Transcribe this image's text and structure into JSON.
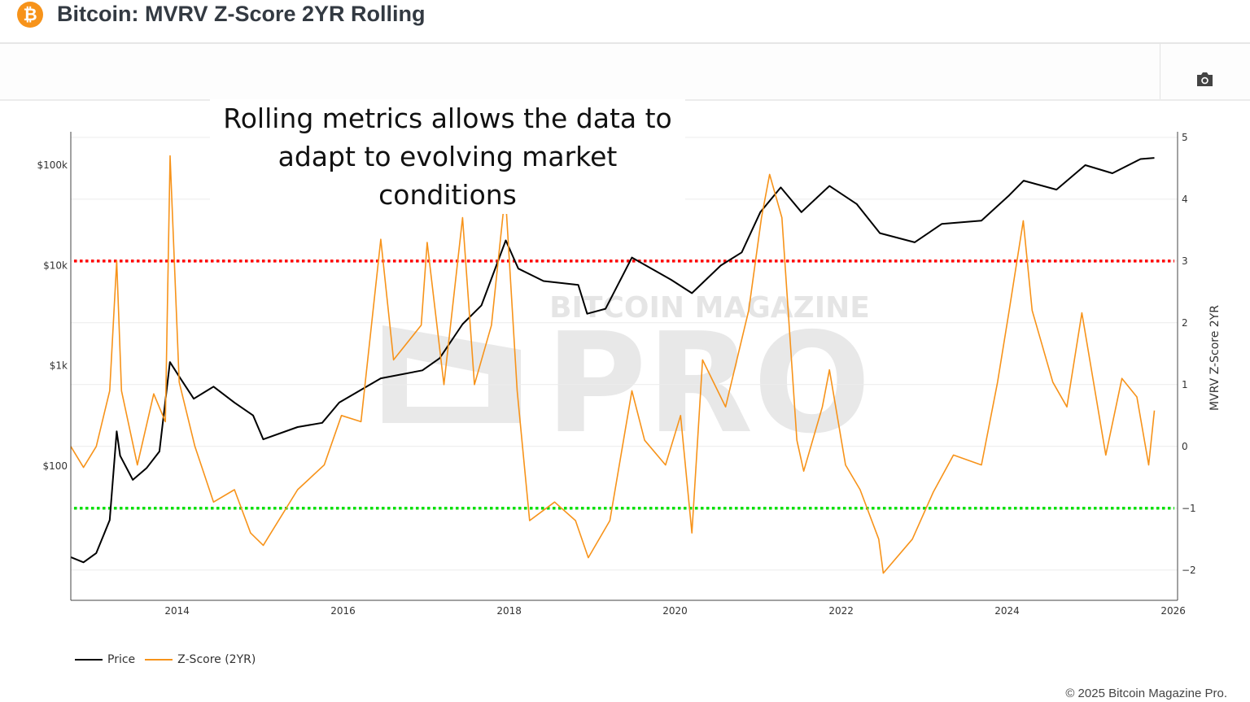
{
  "header": {
    "title": "Bitcoin: MVRV Z-Score 2YR Rolling",
    "logo_icon": "bitcoin-icon",
    "logo_glyph": "₿"
  },
  "toolbar": {
    "camera_icon": "camera-icon"
  },
  "annotation": {
    "line1": "Rolling metrics allows the data to",
    "line2": "adapt to evolving market conditions"
  },
  "watermark": {
    "text_top": "BITCOIN MAGAZINE",
    "text_big": "PRO"
  },
  "legend": {
    "price": "Price",
    "zscore": "Z-Score (2YR)"
  },
  "footer": {
    "copyright": "© 2025 Bitcoin Magazine Pro."
  },
  "colors": {
    "price": "#000000",
    "zscore": "#f7931a",
    "upper_threshold": "#ff0000",
    "lower_threshold": "#00e000"
  },
  "chart_data": {
    "type": "line",
    "title": "Bitcoin: MVRV Z-Score 2YR Rolling",
    "x_ticks": [
      "2014",
      "2016",
      "2018",
      "2020",
      "2022",
      "2024",
      "2026"
    ],
    "xlim": [
      "2012-09-20",
      "2026-01-20"
    ],
    "y_left": {
      "scale": "log",
      "ticks": [
        "$100",
        "$1k",
        "$10k",
        "$100k"
      ],
      "tick_values": [
        100,
        1000,
        10000,
        100000
      ],
      "range": [
        4.6,
        215000
      ]
    },
    "y_right": {
      "label": "MVRV Z-Score 2YR",
      "ticks": [
        "−2",
        "−1",
        "0",
        "1",
        "2",
        "3",
        "4",
        "5"
      ],
      "tick_values": [
        -2,
        -1,
        0,
        1,
        2,
        3,
        4,
        5
      ],
      "range": [
        -2.49,
        5.09
      ]
    },
    "grid": true,
    "legend_position": "bottom-left",
    "thresholds": [
      {
        "value": 3,
        "color": "#ff0000",
        "style": "dotted"
      },
      {
        "value": -1,
        "color": "#00e000",
        "style": "dotted"
      }
    ],
    "series": [
      {
        "name": "Price",
        "axis": "left",
        "color": "#000000",
        "points": [
          [
            "2012-09-20",
            12.4
          ],
          [
            "2012-11-15",
            11
          ],
          [
            "2013-01-10",
            13.6
          ],
          [
            "2013-03-10",
            29
          ],
          [
            "2013-04-10",
            222
          ],
          [
            "2013-04-25",
            127
          ],
          [
            "2013-06-20",
            73
          ],
          [
            "2013-08-20",
            96
          ],
          [
            "2013-10-15",
            140
          ],
          [
            "2013-11-30",
            1090
          ],
          [
            "2014-01-15",
            750
          ],
          [
            "2014-03-15",
            470
          ],
          [
            "2014-06-10",
            620
          ],
          [
            "2014-09-10",
            430
          ],
          [
            "2014-12-01",
            320
          ],
          [
            "2015-01-15",
            185
          ],
          [
            "2015-06-15",
            245
          ],
          [
            "2015-10-01",
            270
          ],
          [
            "2015-12-15",
            430
          ],
          [
            "2016-06-15",
            750
          ],
          [
            "2016-12-15",
            900
          ],
          [
            "2017-03-01",
            1190
          ],
          [
            "2017-06-10",
            2600
          ],
          [
            "2017-09-01",
            4000
          ],
          [
            "2017-12-17",
            17800
          ],
          [
            "2018-02-10",
            9300
          ],
          [
            "2018-06-01",
            7000
          ],
          [
            "2018-11-01",
            6400
          ],
          [
            "2018-12-10",
            3300
          ],
          [
            "2019-03-01",
            3700
          ],
          [
            "2019-06-25",
            12000
          ],
          [
            "2019-12-15",
            7200
          ],
          [
            "2020-03-15",
            5300
          ],
          [
            "2020-07-20",
            10000
          ],
          [
            "2020-10-20",
            13500
          ],
          [
            "2021-01-10",
            34000
          ],
          [
            "2021-04-10",
            60000
          ],
          [
            "2021-07-10",
            34000
          ],
          [
            "2021-11-10",
            62000
          ],
          [
            "2022-03-10",
            41000
          ],
          [
            "2022-06-20",
            21000
          ],
          [
            "2022-11-20",
            17000
          ],
          [
            "2023-03-20",
            26000
          ],
          [
            "2023-09-10",
            28000
          ],
          [
            "2024-01-10",
            50000
          ],
          [
            "2024-03-14",
            70000
          ],
          [
            "2024-08-05",
            57000
          ],
          [
            "2024-12-10",
            100000
          ],
          [
            "2025-04-08",
            83000
          ],
          [
            "2025-08-10",
            115000
          ],
          [
            "2025-10-10",
            118000
          ]
        ]
      },
      {
        "name": "Z-Score (2YR)",
        "axis": "right",
        "color": "#f7931a",
        "points": [
          [
            "2012-09-20",
            0
          ],
          [
            "2012-11-15",
            -0.34
          ],
          [
            "2013-01-10",
            0
          ],
          [
            "2013-03-10",
            0.9
          ],
          [
            "2013-04-10",
            3.0
          ],
          [
            "2013-05-01",
            0.9
          ],
          [
            "2013-07-10",
            -0.3
          ],
          [
            "2013-09-20",
            0.85
          ],
          [
            "2013-11-10",
            0.4
          ],
          [
            "2013-12-01",
            4.7
          ],
          [
            "2014-01-10",
            1.04
          ],
          [
            "2014-03-20",
            0
          ],
          [
            "2014-06-10",
            -0.9
          ],
          [
            "2014-09-10",
            -0.7
          ],
          [
            "2014-11-20",
            -1.4
          ],
          [
            "2015-01-15",
            -1.6
          ],
          [
            "2015-06-15",
            -0.7
          ],
          [
            "2015-10-10",
            -0.3
          ],
          [
            "2015-12-25",
            0.5
          ],
          [
            "2016-03-20",
            0.4
          ],
          [
            "2016-06-15",
            3.35
          ],
          [
            "2016-08-10",
            1.4
          ],
          [
            "2016-12-10",
            1.96
          ],
          [
            "2017-01-05",
            3.3
          ],
          [
            "2017-03-20",
            1.0
          ],
          [
            "2017-06-10",
            3.7
          ],
          [
            "2017-08-01",
            1.0
          ],
          [
            "2017-10-15",
            1.96
          ],
          [
            "2017-12-15",
            4.1
          ],
          [
            "2018-02-05",
            0.9
          ],
          [
            "2018-04-01",
            -1.2
          ],
          [
            "2018-07-20",
            -0.9
          ],
          [
            "2018-10-20",
            -1.2
          ],
          [
            "2018-12-15",
            -1.8
          ],
          [
            "2019-03-20",
            -1.2
          ],
          [
            "2019-06-25",
            0.9
          ],
          [
            "2019-08-20",
            0.1
          ],
          [
            "2019-11-20",
            -0.3
          ],
          [
            "2020-01-25",
            0.5
          ],
          [
            "2020-03-15",
            -1.4
          ],
          [
            "2020-05-01",
            1.4
          ],
          [
            "2020-08-10",
            0.64
          ],
          [
            "2020-11-20",
            2.2
          ],
          [
            "2021-01-15",
            3.7
          ],
          [
            "2021-02-20",
            4.4
          ],
          [
            "2021-04-15",
            3.7
          ],
          [
            "2021-06-20",
            0.1
          ],
          [
            "2021-07-20",
            -0.4
          ],
          [
            "2021-10-10",
            0.64
          ],
          [
            "2021-11-10",
            1.24
          ],
          [
            "2022-01-20",
            -0.3
          ],
          [
            "2022-03-25",
            -0.7
          ],
          [
            "2022-06-15",
            -1.5
          ],
          [
            "2022-07-05",
            -2.05
          ],
          [
            "2022-11-10",
            -1.5
          ],
          [
            "2023-02-10",
            -0.74
          ],
          [
            "2023-05-10",
            -0.14
          ],
          [
            "2023-09-10",
            -0.3
          ],
          [
            "2023-11-20",
            1.04
          ],
          [
            "2024-01-10",
            2.2
          ],
          [
            "2024-03-12",
            3.65
          ],
          [
            "2024-04-20",
            2.2
          ],
          [
            "2024-07-20",
            1.04
          ],
          [
            "2024-09-20",
            0.64
          ],
          [
            "2024-11-25",
            2.16
          ],
          [
            "2025-03-10",
            -0.14
          ],
          [
            "2025-05-20",
            1.1
          ],
          [
            "2025-07-25",
            0.8
          ],
          [
            "2025-09-15",
            -0.3
          ],
          [
            "2025-10-10",
            0.58
          ]
        ]
      }
    ]
  }
}
